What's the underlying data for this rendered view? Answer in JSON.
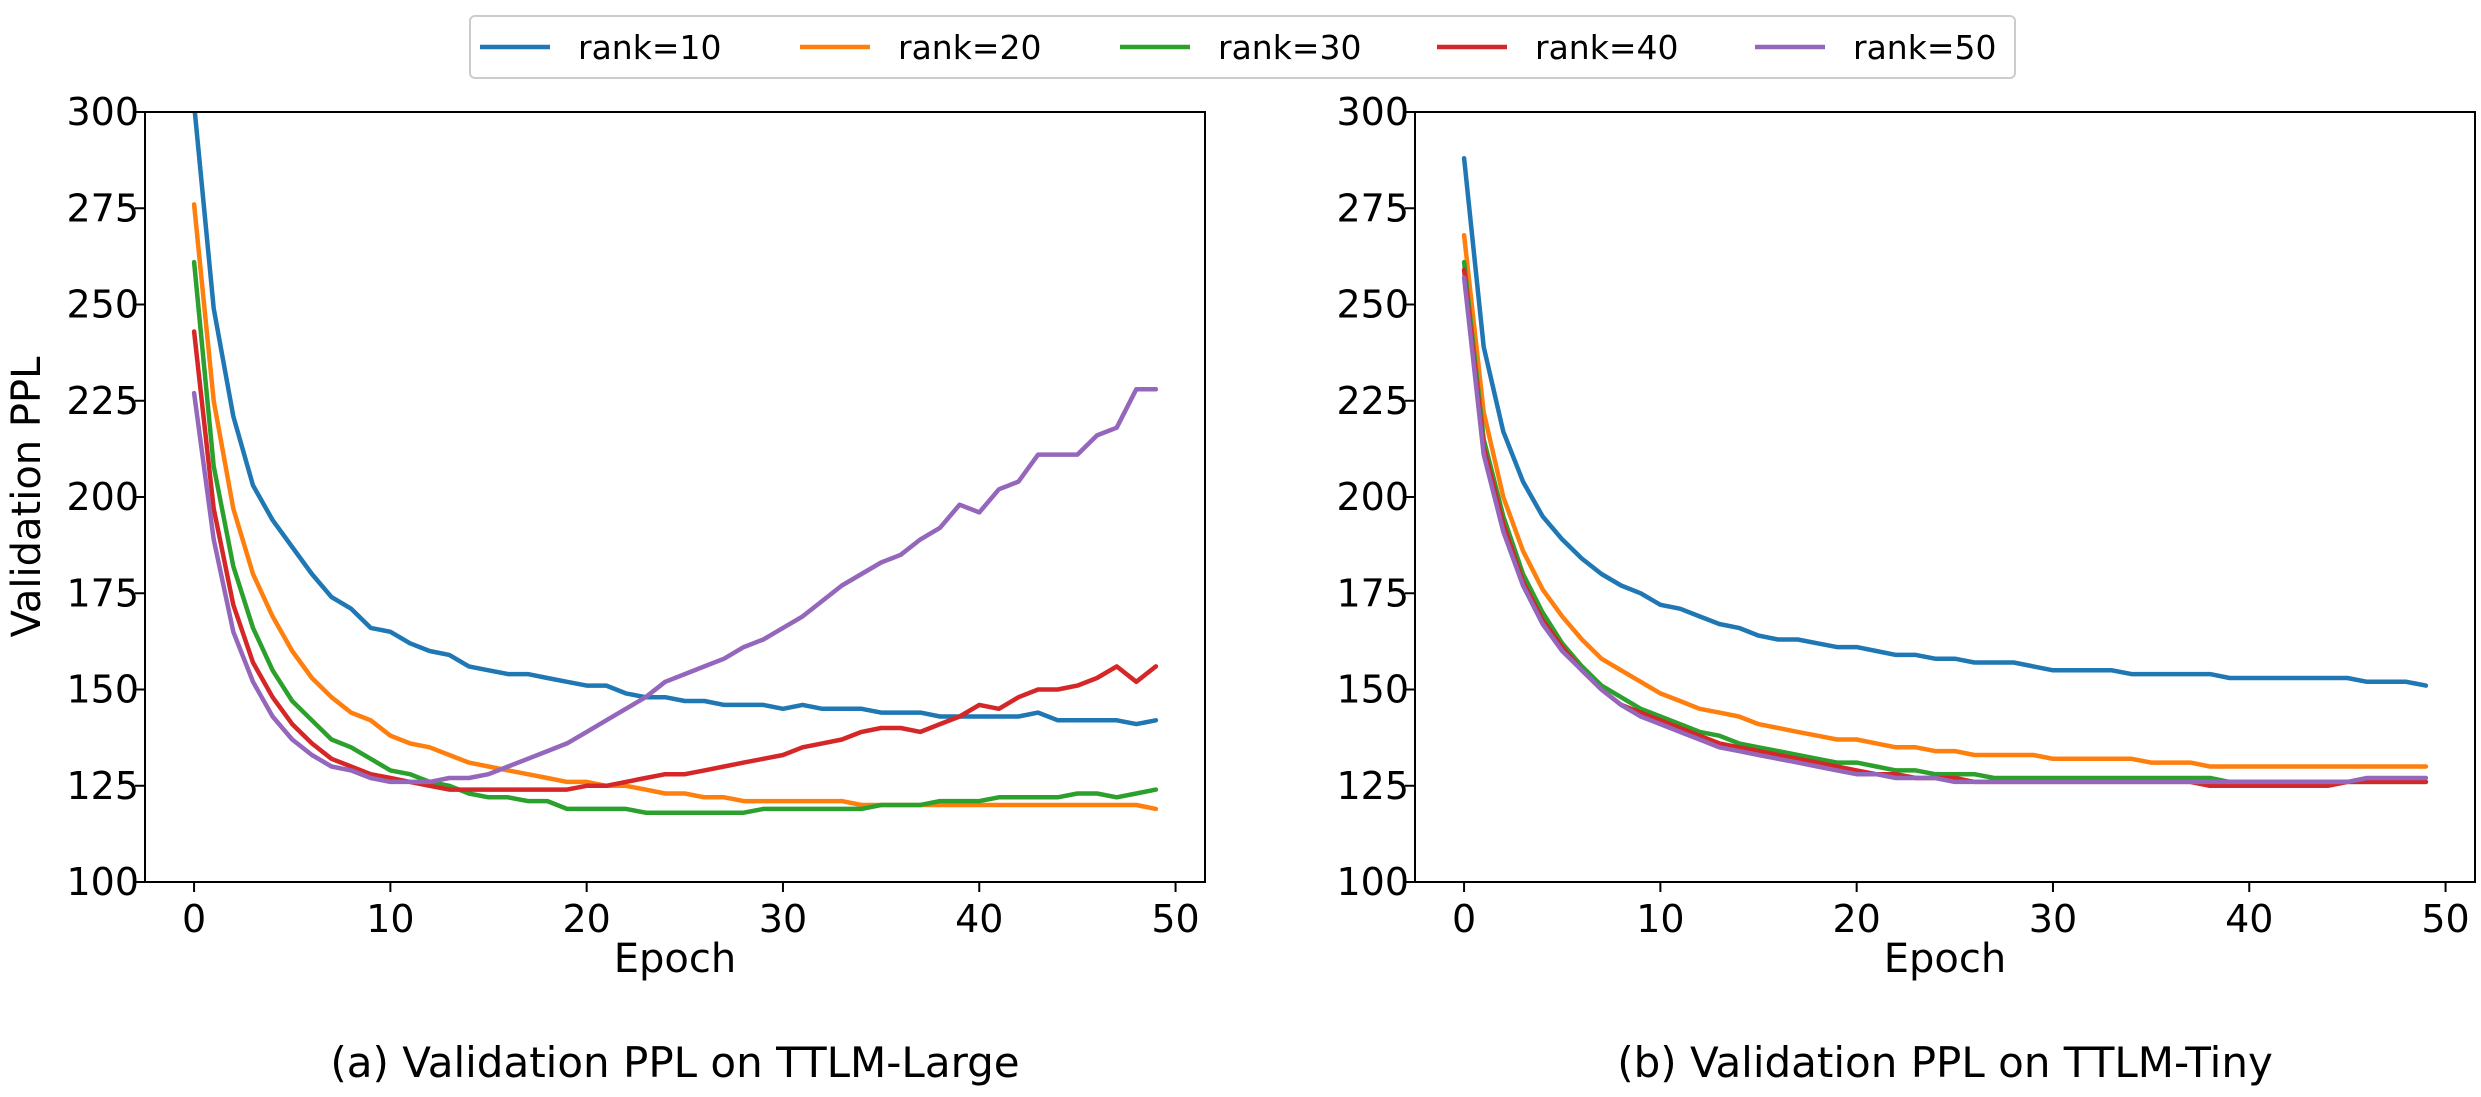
{
  "legend": [
    "rank=10",
    "rank=20",
    "rank=30",
    "rank=40",
    "rank=50"
  ],
  "colors": [
    "#1f77b4",
    "#ff7f0e",
    "#2ca02c",
    "#d62728",
    "#9467bd"
  ],
  "chart_data": [
    {
      "type": "line",
      "caption": "(a) Validation PPL on TTLM-Large",
      "xlabel": "Epoch",
      "ylabel": "Validation PPL",
      "xlim": [
        -2.5,
        51.5
      ],
      "ylim": [
        100,
        300
      ],
      "xticks": [
        0,
        10,
        20,
        30,
        40,
        50
      ],
      "yticks": [
        100,
        125,
        150,
        175,
        200,
        225,
        250,
        275,
        300
      ],
      "grid": false,
      "x": [
        0,
        1,
        2,
        3,
        4,
        5,
        6,
        7,
        8,
        9,
        10,
        11,
        12,
        13,
        14,
        15,
        16,
        17,
        18,
        19,
        20,
        21,
        22,
        23,
        24,
        25,
        26,
        27,
        28,
        29,
        30,
        31,
        32,
        33,
        34,
        35,
        36,
        37,
        38,
        39,
        40,
        41,
        42,
        43,
        44,
        45,
        46,
        47,
        48,
        49
      ],
      "series": [
        {
          "name": "rank=10",
          "values": [
            302,
            249,
            221,
            203,
            194,
            187,
            180,
            174,
            171,
            166,
            165,
            162,
            160,
            159,
            156,
            155,
            154,
            154,
            153,
            152,
            151,
            151,
            149,
            148,
            148,
            147,
            147,
            146,
            146,
            146,
            145,
            146,
            145,
            145,
            145,
            144,
            144,
            144,
            143,
            143,
            143,
            143,
            143,
            144,
            142,
            142,
            142,
            142,
            141,
            142
          ]
        },
        {
          "name": "rank=20",
          "values": [
            276,
            225,
            197,
            180,
            169,
            160,
            153,
            148,
            144,
            142,
            138,
            136,
            135,
            133,
            131,
            130,
            129,
            128,
            127,
            126,
            126,
            125,
            125,
            124,
            123,
            123,
            122,
            122,
            121,
            121,
            121,
            121,
            121,
            121,
            120,
            120,
            120,
            120,
            120,
            120,
            120,
            120,
            120,
            120,
            120,
            120,
            120,
            120,
            120,
            119
          ]
        },
        {
          "name": "rank=30",
          "values": [
            261,
            208,
            182,
            166,
            155,
            147,
            142,
            137,
            135,
            132,
            129,
            128,
            126,
            125,
            123,
            122,
            122,
            121,
            121,
            119,
            119,
            119,
            119,
            118,
            118,
            118,
            118,
            118,
            118,
            119,
            119,
            119,
            119,
            119,
            119,
            120,
            120,
            120,
            121,
            121,
            121,
            122,
            122,
            122,
            122,
            123,
            123,
            122,
            123,
            124
          ]
        },
        {
          "name": "rank=40",
          "values": [
            243,
            197,
            172,
            157,
            148,
            141,
            136,
            132,
            130,
            128,
            127,
            126,
            125,
            124,
            124,
            124,
            124,
            124,
            124,
            124,
            125,
            125,
            126,
            127,
            128,
            128,
            129,
            130,
            131,
            132,
            133,
            135,
            136,
            137,
            139,
            140,
            140,
            139,
            141,
            143,
            146,
            145,
            148,
            150,
            150,
            151,
            153,
            156,
            152,
            156
          ]
        },
        {
          "name": "rank=50",
          "values": [
            227,
            189,
            165,
            152,
            143,
            137,
            133,
            130,
            129,
            127,
            126,
            126,
            126,
            127,
            127,
            128,
            130,
            132,
            134,
            136,
            139,
            142,
            145,
            148,
            152,
            154,
            156,
            158,
            161,
            163,
            166,
            169,
            173,
            177,
            180,
            183,
            185,
            189,
            192,
            198,
            196,
            202,
            204,
            211,
            211,
            211,
            216,
            218,
            228,
            228
          ]
        }
      ]
    },
    {
      "type": "line",
      "caption": "(b) Validation PPL on TTLM-Tiny",
      "xlabel": "Epoch",
      "ylabel": "",
      "xlim": [
        -2.5,
        51.5
      ],
      "ylim": [
        100,
        300
      ],
      "xticks": [
        0,
        10,
        20,
        30,
        40,
        50
      ],
      "yticks": [
        100,
        125,
        150,
        175,
        200,
        225,
        250,
        275,
        300
      ],
      "grid": false,
      "x": [
        0,
        1,
        2,
        3,
        4,
        5,
        6,
        7,
        8,
        9,
        10,
        11,
        12,
        13,
        14,
        15,
        16,
        17,
        18,
        19,
        20,
        21,
        22,
        23,
        24,
        25,
        26,
        27,
        28,
        29,
        30,
        31,
        32,
        33,
        34,
        35,
        36,
        37,
        38,
        39,
        40,
        41,
        42,
        43,
        44,
        45,
        46,
        47,
        48,
        49
      ],
      "series": [
        {
          "name": "rank=10",
          "values": [
            288,
            239,
            217,
            204,
            195,
            189,
            184,
            180,
            177,
            175,
            172,
            171,
            169,
            167,
            166,
            164,
            163,
            163,
            162,
            161,
            161,
            160,
            159,
            159,
            158,
            158,
            157,
            157,
            157,
            156,
            155,
            155,
            155,
            155,
            154,
            154,
            154,
            154,
            154,
            153,
            153,
            153,
            153,
            153,
            153,
            153,
            152,
            152,
            152,
            151
          ]
        },
        {
          "name": "rank=20",
          "values": [
            268,
            222,
            200,
            186,
            176,
            169,
            163,
            158,
            155,
            152,
            149,
            147,
            145,
            144,
            143,
            141,
            140,
            139,
            138,
            137,
            137,
            136,
            135,
            135,
            134,
            134,
            133,
            133,
            133,
            133,
            132,
            132,
            132,
            132,
            132,
            131,
            131,
            131,
            130,
            130,
            130,
            130,
            130,
            130,
            130,
            130,
            130,
            130,
            130,
            130
          ]
        },
        {
          "name": "rank=30",
          "values": [
            261,
            215,
            195,
            180,
            170,
            162,
            156,
            151,
            148,
            145,
            143,
            141,
            139,
            138,
            136,
            135,
            134,
            133,
            132,
            131,
            131,
            130,
            129,
            129,
            128,
            128,
            128,
            127,
            127,
            127,
            127,
            127,
            127,
            127,
            127,
            127,
            127,
            127,
            127,
            126,
            126,
            126,
            126,
            126,
            126,
            126,
            126,
            126,
            126,
            126
          ]
        },
        {
          "name": "rank=40",
          "values": [
            259,
            213,
            193,
            178,
            168,
            161,
            155,
            150,
            146,
            144,
            142,
            140,
            138,
            136,
            135,
            134,
            133,
            132,
            131,
            130,
            129,
            128,
            128,
            127,
            127,
            127,
            126,
            126,
            126,
            126,
            126,
            126,
            126,
            126,
            126,
            126,
            126,
            126,
            125,
            125,
            125,
            125,
            125,
            125,
            125,
            126,
            126,
            126,
            126,
            126
          ]
        },
        {
          "name": "rank=50",
          "values": [
            257,
            211,
            191,
            177,
            167,
            160,
            155,
            150,
            146,
            143,
            141,
            139,
            137,
            135,
            134,
            133,
            132,
            131,
            130,
            129,
            128,
            128,
            127,
            127,
            127,
            126,
            126,
            126,
            126,
            126,
            126,
            126,
            126,
            126,
            126,
            126,
            126,
            126,
            126,
            126,
            126,
            126,
            126,
            126,
            126,
            126,
            127,
            127,
            127,
            127
          ]
        }
      ]
    }
  ]
}
